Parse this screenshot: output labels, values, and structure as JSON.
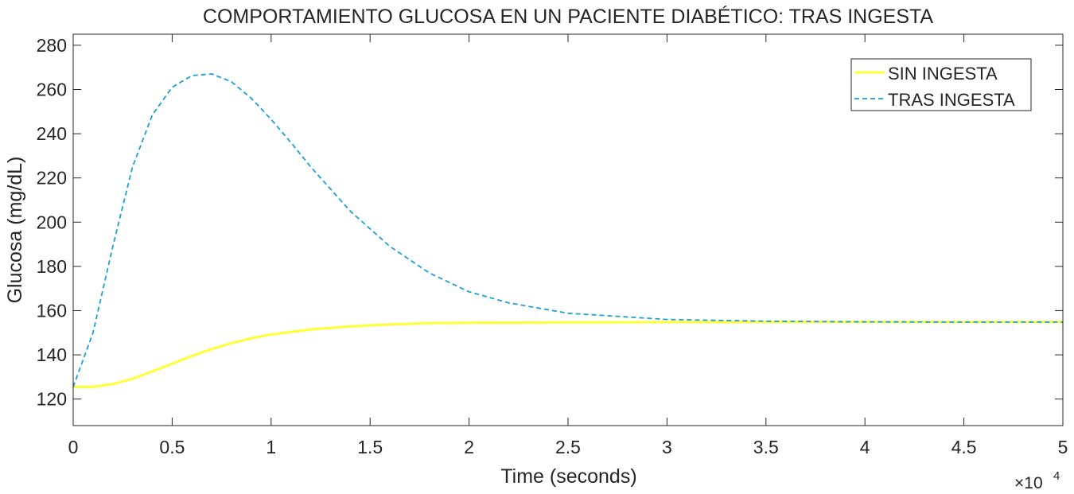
{
  "chart_data": {
    "type": "line",
    "title": "COMPORTAMIENTO GLUCOSA EN UN PACIENTE DIABÉTICO: TRAS INGESTA",
    "xlabel": "Time (seconds)",
    "ylabel": "Glucosa (mg/dL)",
    "x_exponent_label": "×10",
    "x_exponent_power": "4",
    "xlim": [
      0,
      5
    ],
    "ylim": [
      108,
      285
    ],
    "xticks": [
      0,
      0.5,
      1,
      1.5,
      2,
      2.5,
      3,
      3.5,
      4,
      4.5,
      5
    ],
    "xtick_labels": [
      "0",
      "0.5",
      "1",
      "1.5",
      "2",
      "2.5",
      "3",
      "3.5",
      "4",
      "4.5",
      "5"
    ],
    "yticks": [
      120,
      140,
      160,
      180,
      200,
      220,
      240,
      260,
      280
    ],
    "ytick_labels": [
      "120",
      "140",
      "160",
      "180",
      "200",
      "220",
      "240",
      "260",
      "280"
    ],
    "grid": false,
    "legend_position": "top-right",
    "series": [
      {
        "name": "SIN INGESTA",
        "color": "#FFFF33",
        "style": "solid",
        "x": [
          0,
          0.1,
          0.2,
          0.3,
          0.4,
          0.5,
          0.6,
          0.7,
          0.8,
          0.9,
          1.0,
          1.2,
          1.4,
          1.6,
          1.8,
          2.0,
          2.5,
          3.0,
          3.5,
          4.0,
          4.5,
          5.0
        ],
        "y": [
          125.5,
          125.5,
          126.8,
          129.2,
          132.5,
          136.0,
          139.5,
          142.6,
          145.3,
          147.5,
          149.2,
          151.5,
          152.9,
          153.8,
          154.3,
          154.5,
          154.7,
          154.8,
          154.8,
          154.8,
          154.8,
          154.8
        ]
      },
      {
        "name": "TRAS INGESTA",
        "color": "#1A9FD9",
        "style": "dashed",
        "x": [
          0,
          0.1,
          0.2,
          0.3,
          0.4,
          0.5,
          0.6,
          0.7,
          0.8,
          0.9,
          1.0,
          1.1,
          1.2,
          1.4,
          1.6,
          1.8,
          2.0,
          2.2,
          2.5,
          3.0,
          3.5,
          4.0,
          4.5,
          5.0
        ],
        "y": [
          125.5,
          150.0,
          189.0,
          225.0,
          248.5,
          261.0,
          266.3,
          267.0,
          263.5,
          256.0,
          246.5,
          236.0,
          225.0,
          205.0,
          189.0,
          177.0,
          168.5,
          163.5,
          158.8,
          156.0,
          155.2,
          154.9,
          154.8,
          154.8
        ]
      }
    ]
  }
}
